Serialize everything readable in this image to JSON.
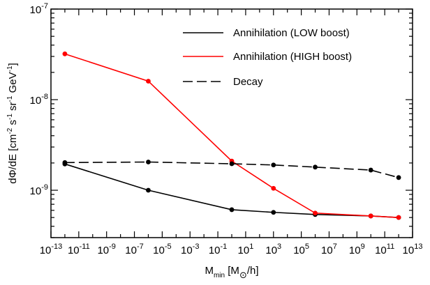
{
  "chart_data": {
    "type": "line",
    "xscale": "log",
    "yscale": "log",
    "xlim": [
      1e-13,
      10000000000000.0
    ],
    "ylim": [
      3e-10,
      1e-07
    ],
    "xlabel": {
      "main": "M",
      "sub": "min",
      "unit_open": " [M",
      "unit_sub": "⊙",
      "unit_close": "/h]"
    },
    "ylabel": {
      "prefix": "dΦ/dE [cm",
      "sup1": "-2",
      "mid1": " s",
      "sup2": "-1",
      "mid2": " sr",
      "sup3": "-1",
      "mid3": " GeV",
      "sup4": "-1",
      "suffix": "]"
    },
    "x_ticks": [
      {
        "base": "10",
        "exp": "-13"
      },
      {
        "base": "10",
        "exp": "-11"
      },
      {
        "base": "10",
        "exp": "-9"
      },
      {
        "base": "10",
        "exp": "-7"
      },
      {
        "base": "10",
        "exp": "-5"
      },
      {
        "base": "10",
        "exp": "-3"
      },
      {
        "base": "10",
        "exp": "-1"
      },
      {
        "base": "10",
        "exp": "1"
      },
      {
        "base": "10",
        "exp": "3"
      },
      {
        "base": "10",
        "exp": "5"
      },
      {
        "base": "10",
        "exp": "7"
      },
      {
        "base": "10",
        "exp": "9"
      },
      {
        "base": "10",
        "exp": "11"
      },
      {
        "base": "10",
        "exp": "13"
      }
    ],
    "y_ticks": [
      {
        "base": "10",
        "exp": "-9"
      },
      {
        "base": "10",
        "exp": "-8"
      },
      {
        "base": "10",
        "exp": "-7"
      }
    ],
    "legend_position": "top-right",
    "series": [
      {
        "name": "Annihilation (LOW boost)",
        "color": "#000000",
        "dash": "solid",
        "x": [
          1e-12,
          1e-06,
          1,
          1000.0,
          1000000.0,
          10000000000.0,
          1000000000000.0
        ],
        "y": [
          1.95e-09,
          1e-09,
          6.1e-10,
          5.7e-10,
          5.4e-10,
          5.2e-10,
          5e-10
        ]
      },
      {
        "name": "Annihilation (HIGH boost)",
        "color": "#ff0000",
        "dash": "solid",
        "x": [
          1e-12,
          1e-06,
          1,
          1000.0,
          1000000.0,
          10000000000.0,
          1000000000000.0
        ],
        "y": [
          3.2e-08,
          1.6e-08,
          2.1e-09,
          1.05e-09,
          5.6e-10,
          5.2e-10,
          5e-10
        ]
      },
      {
        "name": "Decay",
        "color": "#000000",
        "dash": "dashed",
        "x": [
          1e-12,
          1e-06,
          1,
          1000.0,
          1000000.0,
          10000000000.0,
          1000000000000.0
        ],
        "y": [
          2.02e-09,
          2.05e-09,
          1.96e-09,
          1.9e-09,
          1.8e-09,
          1.67e-09,
          1.38e-09
        ]
      }
    ]
  }
}
